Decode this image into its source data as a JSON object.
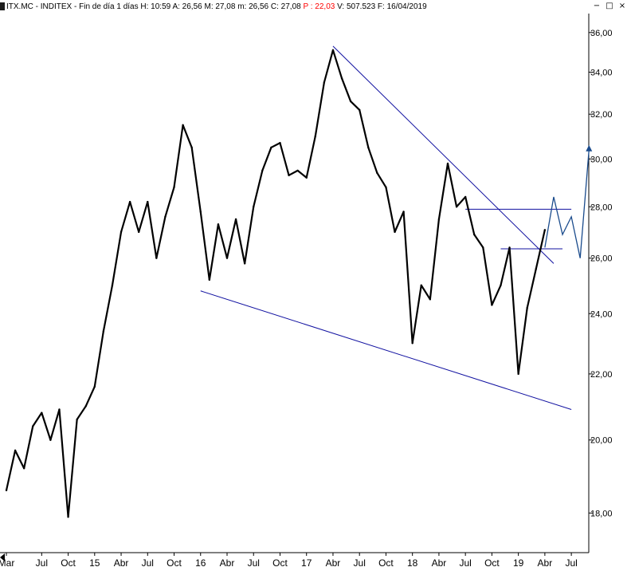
{
  "window": {
    "title_parts": {
      "symbol": "ITX.MC - INDITEX - Fin de día 1 días",
      "high": "H: 10:59",
      "open": "A: 26,56",
      "max": "M: 27,08",
      "min": "m: 26,56",
      "close": "C: 27,08",
      "p_value": "P : 22,03",
      "volume": "V: 507.523",
      "date": "F: 16/04/2019"
    },
    "buttons": {
      "minimize": "−",
      "restore": "□",
      "close": "×"
    }
  },
  "colors": {
    "price": "#000000",
    "trendline": "#1010a0",
    "projection": "#1a4b8c",
    "p_value": "#ff0000"
  },
  "chart_data": {
    "type": "line",
    "ylim": [
      17.0,
      37.0
    ],
    "ytick_labels": [
      "18,00",
      "20,00",
      "22,00",
      "24,00",
      "26,00",
      "28,00",
      "30,00",
      "32,00",
      "34,00",
      "36,00"
    ],
    "yticks": [
      18,
      20,
      22,
      24,
      26,
      28,
      30,
      32,
      34,
      36
    ],
    "xtick_labels": [
      "Mar",
      "Jul",
      "Oct",
      "15",
      "Abr",
      "Jul",
      "Oct",
      "16",
      "Abr",
      "Jul",
      "Oct",
      "17",
      "Abr",
      "Jul",
      "Oct",
      "18",
      "Abr",
      "Jul",
      "Oct",
      "19",
      "Abr",
      "Jul"
    ],
    "xticks": [
      "2014-03",
      "2014-07",
      "2014-10",
      "2015-01",
      "2015-04",
      "2015-07",
      "2015-10",
      "2016-01",
      "2016-04",
      "2016-07",
      "2016-10",
      "2017-01",
      "2017-04",
      "2017-07",
      "2017-10",
      "2018-01",
      "2018-04",
      "2018-07",
      "2018-10",
      "2019-01",
      "2019-04",
      "2019-07"
    ],
    "series": [
      {
        "kind": "price",
        "x": [
          "2014-03",
          "2014-04",
          "2014-05",
          "2014-06",
          "2014-07",
          "2014-08",
          "2014-09",
          "2014-10",
          "2014-11",
          "2014-12",
          "2015-01",
          "2015-02",
          "2015-03",
          "2015-04",
          "2015-05",
          "2015-06",
          "2015-07",
          "2015-08",
          "2015-09",
          "2015-10",
          "2015-11",
          "2015-12",
          "2016-01",
          "2016-02",
          "2016-03",
          "2016-04",
          "2016-05",
          "2016-06",
          "2016-07",
          "2016-08",
          "2016-09",
          "2016-10",
          "2016-11",
          "2016-12",
          "2017-01",
          "2017-02",
          "2017-03",
          "2017-04",
          "2017-05",
          "2017-06",
          "2017-07",
          "2017-08",
          "2017-09",
          "2017-10",
          "2017-11",
          "2017-12",
          "2018-01",
          "2018-02",
          "2018-03",
          "2018-04",
          "2018-05",
          "2018-06",
          "2018-07",
          "2018-08",
          "2018-09",
          "2018-10",
          "2018-11",
          "2018-12",
          "2019-01",
          "2019-02",
          "2019-03",
          "2019-04"
        ],
        "y": [
          18.6,
          19.7,
          19.2,
          20.4,
          20.8,
          20.0,
          20.9,
          17.9,
          20.6,
          21.0,
          21.6,
          23.4,
          25.0,
          27.0,
          28.2,
          27.0,
          28.2,
          26.0,
          27.6,
          28.8,
          31.5,
          30.5,
          27.8,
          25.2,
          27.3,
          26.0,
          27.5,
          25.8,
          28.0,
          29.5,
          30.5,
          30.7,
          29.3,
          29.5,
          29.2,
          31.0,
          33.5,
          35.1,
          33.7,
          32.6,
          32.2,
          30.5,
          29.4,
          28.8,
          27.0,
          27.8,
          23.0,
          25.0,
          24.5,
          27.5,
          29.8,
          28.0,
          28.4,
          26.9,
          26.4,
          24.3,
          25.0,
          26.4,
          22.0,
          24.2,
          25.6,
          27.08
        ]
      }
    ],
    "trendlines": [
      {
        "x": [
          "2017-04",
          "2019-05"
        ],
        "y": [
          35.3,
          25.8
        ]
      },
      {
        "x": [
          "2016-01",
          "2019-07"
        ],
        "y": [
          24.8,
          20.9
        ]
      },
      {
        "x": [
          "2018-07",
          "2019-07"
        ],
        "y": [
          27.9,
          27.9
        ]
      },
      {
        "x": [
          "2018-11",
          "2019-06"
        ],
        "y": [
          26.35,
          26.35
        ]
      }
    ],
    "projection": {
      "x": [
        "2019-04",
        "2019-05",
        "2019-06",
        "2019-07",
        "2019-08",
        "2019-09"
      ],
      "y": [
        26.4,
        28.4,
        26.9,
        27.6,
        26.0,
        30.4
      ]
    }
  }
}
